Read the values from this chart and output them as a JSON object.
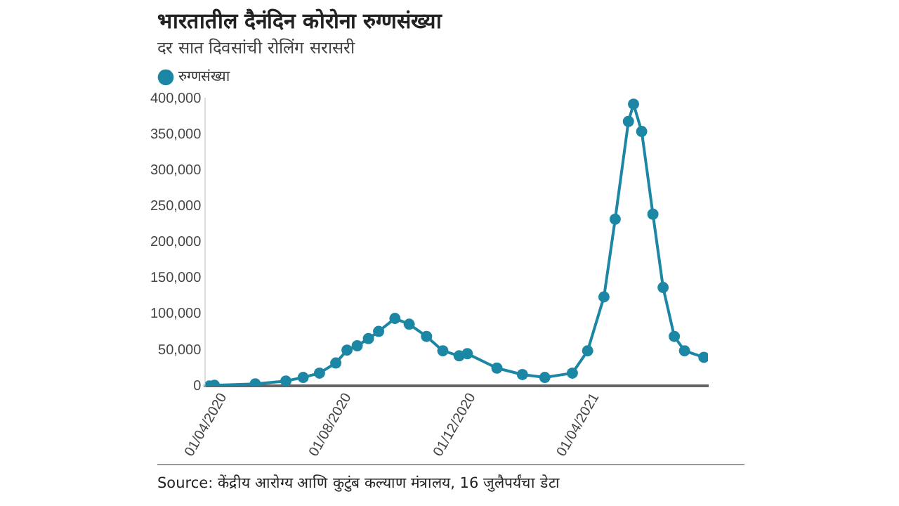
{
  "chart_data": {
    "type": "line",
    "title": "भारतातील दैनंदिन कोरोना रुग्णसंख्या",
    "subtitle": "दर सात दिवसांची रोलिंग सरासरी",
    "annotations": [
      "Source: केंद्रीय आरोग्य आणि कुटुंब कल्याण मंत्रालय, 16 जुलैपर्यंचा डेटा"
    ],
    "x": [
      "2020-03-18",
      "2020-03-23",
      "2020-05-02",
      "2020-06-01",
      "2020-06-18",
      "2020-07-04",
      "2020-07-20",
      "2020-07-31",
      "2020-08-10",
      "2020-08-21",
      "2020-08-31",
      "2020-09-16",
      "2020-09-30",
      "2020-10-17",
      "2020-11-02",
      "2020-11-18",
      "2020-11-26",
      "2020-12-25",
      "2021-01-19",
      "2021-02-10",
      "2021-03-09",
      "2021-03-24",
      "2021-04-09",
      "2021-04-20",
      "2021-05-03",
      "2021-05-08",
      "2021-05-16",
      "2021-05-27",
      "2021-06-06",
      "2021-06-17",
      "2021-06-27",
      "2021-07-16"
    ],
    "series": [
      {
        "name": "रुग्णसंख्या",
        "color": "#1b87a4",
        "values": [
          0,
          1000,
          3000,
          7000,
          12000,
          18000,
          32000,
          50000,
          56000,
          66000,
          76000,
          94000,
          86000,
          69000,
          49000,
          42000,
          45000,
          25000,
          16000,
          12000,
          18000,
          49000,
          124000,
          232000,
          368000,
          392000,
          354000,
          239000,
          137000,
          69000,
          49000,
          40000
        ]
      }
    ],
    "xlim": [
      "2020-03-14",
      "2021-07-20"
    ],
    "xticks": [
      {
        "value": "2020-04-01",
        "label": "01/04/2020"
      },
      {
        "value": "2020-08-01",
        "label": "01/08/2020"
      },
      {
        "value": "2020-12-01",
        "label": "01/12/2020"
      },
      {
        "value": "2021-04-01",
        "label": "01/04/2021"
      }
    ],
    "ylim": [
      0,
      400000
    ],
    "yticks": [
      0,
      {
        "value": 50000,
        "label": "50,000"
      },
      {
        "value": 100000,
        "label": "100,000"
      },
      {
        "value": 150000,
        "label": "150,000"
      },
      {
        "value": 200000,
        "label": "200,000"
      },
      {
        "value": 250000,
        "label": "250,000"
      },
      {
        "value": 300000,
        "label": "300,000"
      },
      {
        "value": 350000,
        "label": "350,000"
      },
      {
        "value": 400000,
        "label": "400,000"
      }
    ],
    "grid": false,
    "legend": "top left",
    "marker": "circle",
    "line_style": "solid"
  }
}
